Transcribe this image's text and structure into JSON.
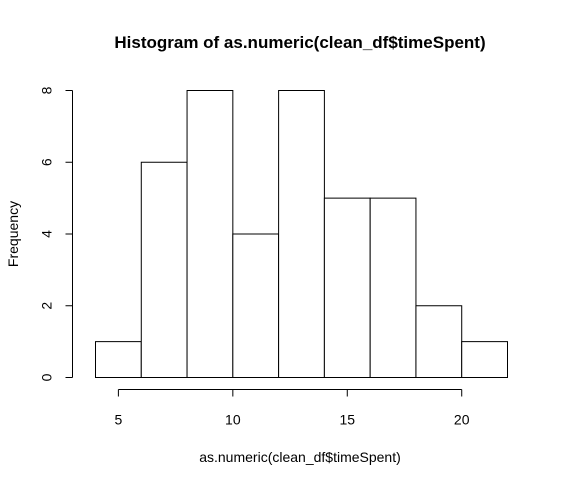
{
  "chart_data": {
    "type": "bar",
    "title": "Histogram of as.numeric(clean_df$timeSpent)",
    "xlabel": "as.numeric(clean_df$timeSpent)",
    "ylabel": "Frequency",
    "bins": [
      {
        "from": 4,
        "to": 6,
        "count": 1
      },
      {
        "from": 6,
        "to": 8,
        "count": 6
      },
      {
        "from": 8,
        "to": 10,
        "count": 8
      },
      {
        "from": 10,
        "to": 12,
        "count": 4
      },
      {
        "from": 12,
        "to": 14,
        "count": 8
      },
      {
        "from": 14,
        "to": 16,
        "count": 5
      },
      {
        "from": 16,
        "to": 18,
        "count": 5
      },
      {
        "from": 18,
        "to": 20,
        "count": 2
      },
      {
        "from": 20,
        "to": 22,
        "count": 1
      }
    ],
    "xticks": [
      "5",
      "10",
      "15",
      "20"
    ],
    "yticks": [
      "0",
      "2",
      "4",
      "6",
      "8"
    ],
    "xlim": [
      4,
      22
    ],
    "ylim": [
      0,
      8
    ],
    "grid": false,
    "legend": "none",
    "bar_fill": "#ffffff",
    "bar_stroke": "#000000"
  }
}
